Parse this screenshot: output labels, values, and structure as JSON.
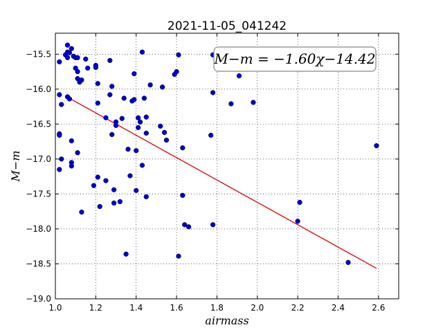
{
  "chart_data": {
    "type": "scatter",
    "title": "2021-11-05_041242",
    "xlabel": "airmass",
    "ylabel": "M−m",
    "xlim": [
      1.0,
      2.7
    ],
    "ylim": [
      -19.0,
      -15.2
    ],
    "xticks": [
      1.0,
      1.2,
      1.4,
      1.6,
      1.8,
      2.0,
      2.2,
      2.4,
      2.6
    ],
    "xtick_labels": [
      "1.0",
      "1.2",
      "1.4",
      "1.6",
      "1.8",
      "2.0",
      "2.2",
      "2.4",
      "2.6"
    ],
    "yticks": [
      -15.5,
      -16.0,
      -16.5,
      -17.0,
      -17.5,
      -18.0,
      -18.5,
      -19.0
    ],
    "ytick_labels": [
      "−15.5",
      "−16.0",
      "−16.5",
      "−17.0",
      "−17.5",
      "−18.0",
      "−18.5",
      "−19.0"
    ],
    "grid": true,
    "annotation": "M−m = −1.60χ−14.42",
    "point_color": "#0000cc",
    "fit_color": "#dd0000",
    "fit": {
      "slope": -1.6,
      "intercept": -14.42,
      "x_range": [
        1.06,
        2.59
      ]
    },
    "points": [
      [
        1.02,
        -15.61
      ],
      [
        1.02,
        -16.08
      ],
      [
        1.03,
        -16.22
      ],
      [
        1.02,
        -16.64
      ],
      [
        1.02,
        -16.66
      ],
      [
        1.02,
        -17.15
      ],
      [
        1.03,
        -17.0
      ],
      [
        1.06,
        -15.37
      ],
      [
        1.06,
        -15.47
      ],
      [
        1.05,
        -15.51
      ],
      [
        1.07,
        -15.48
      ],
      [
        1.06,
        -15.55
      ],
      [
        1.08,
        -15.42
      ],
      [
        1.09,
        -15.53
      ],
      [
        1.1,
        -15.55
      ],
      [
        1.11,
        -15.55
      ],
      [
        1.1,
        -15.7
      ],
      [
        1.11,
        -15.75
      ],
      [
        1.11,
        -15.85
      ],
      [
        1.12,
        -15.9
      ],
      [
        1.13,
        -15.87
      ],
      [
        1.06,
        -16.11
      ],
      [
        1.07,
        -16.14
      ],
      [
        1.08,
        -16.74
      ],
      [
        1.08,
        -17.05
      ],
      [
        1.08,
        -17.1
      ],
      [
        1.11,
        -16.91
      ],
      [
        1.13,
        -17.76
      ],
      [
        1.15,
        -15.57
      ],
      [
        1.16,
        -15.7
      ],
      [
        1.19,
        -17.38
      ],
      [
        1.2,
        -15.66
      ],
      [
        1.2,
        -15.69
      ],
      [
        1.21,
        -15.92
      ],
      [
        1.21,
        -16.2
      ],
      [
        1.21,
        -17.26
      ],
      [
        1.22,
        -17.68
      ],
      [
        1.25,
        -16.41
      ],
      [
        1.25,
        -17.31
      ],
      [
        1.27,
        -15.59
      ],
      [
        1.27,
        -16.08
      ],
      [
        1.28,
        -15.96
      ],
      [
        1.28,
        -16.65
      ],
      [
        1.29,
        -17.44
      ],
      [
        1.3,
        -16.47
      ],
      [
        1.3,
        -16.52
      ],
      [
        1.29,
        -17.63
      ],
      [
        1.32,
        -17.61
      ],
      [
        1.33,
        -16.42
      ],
      [
        1.34,
        -16.13
      ],
      [
        1.35,
        -18.36
      ],
      [
        1.36,
        -16.86
      ],
      [
        1.37,
        -17.24
      ],
      [
        1.38,
        -16.17
      ],
      [
        1.39,
        -16.15
      ],
      [
        1.39,
        -15.78
      ],
      [
        1.4,
        -16.88
      ],
      [
        1.4,
        -17.45
      ],
      [
        1.41,
        -16.41
      ],
      [
        1.41,
        -16.55
      ],
      [
        1.42,
        -16.47
      ],
      [
        1.43,
        -17.09
      ],
      [
        1.43,
        -15.47
      ],
      [
        1.44,
        -16.13
      ],
      [
        1.45,
        -16.4
      ],
      [
        1.45,
        -16.63
      ],
      [
        1.45,
        -17.54
      ],
      [
        1.47,
        -15.94
      ],
      [
        1.52,
        -16.53
      ],
      [
        1.53,
        -15.97
      ],
      [
        1.54,
        -16.62
      ],
      [
        1.55,
        -16.73
      ],
      [
        1.59,
        -15.79
      ],
      [
        1.6,
        -15.75
      ],
      [
        1.61,
        -15.51
      ],
      [
        1.61,
        -18.39
      ],
      [
        1.63,
        -16.84
      ],
      [
        1.63,
        -17.52
      ],
      [
        1.64,
        -17.94
      ],
      [
        1.66,
        -17.97
      ],
      [
        1.77,
        -16.66
      ],
      [
        1.78,
        -16.05
      ],
      [
        1.78,
        -15.51
      ],
      [
        1.78,
        -17.94
      ],
      [
        1.87,
        -16.21
      ],
      [
        1.91,
        -15.81
      ],
      [
        1.98,
        -16.19
      ],
      [
        2.2,
        -17.89
      ],
      [
        2.21,
        -17.62
      ],
      [
        2.45,
        -18.48
      ],
      [
        2.59,
        -16.81
      ]
    ]
  }
}
